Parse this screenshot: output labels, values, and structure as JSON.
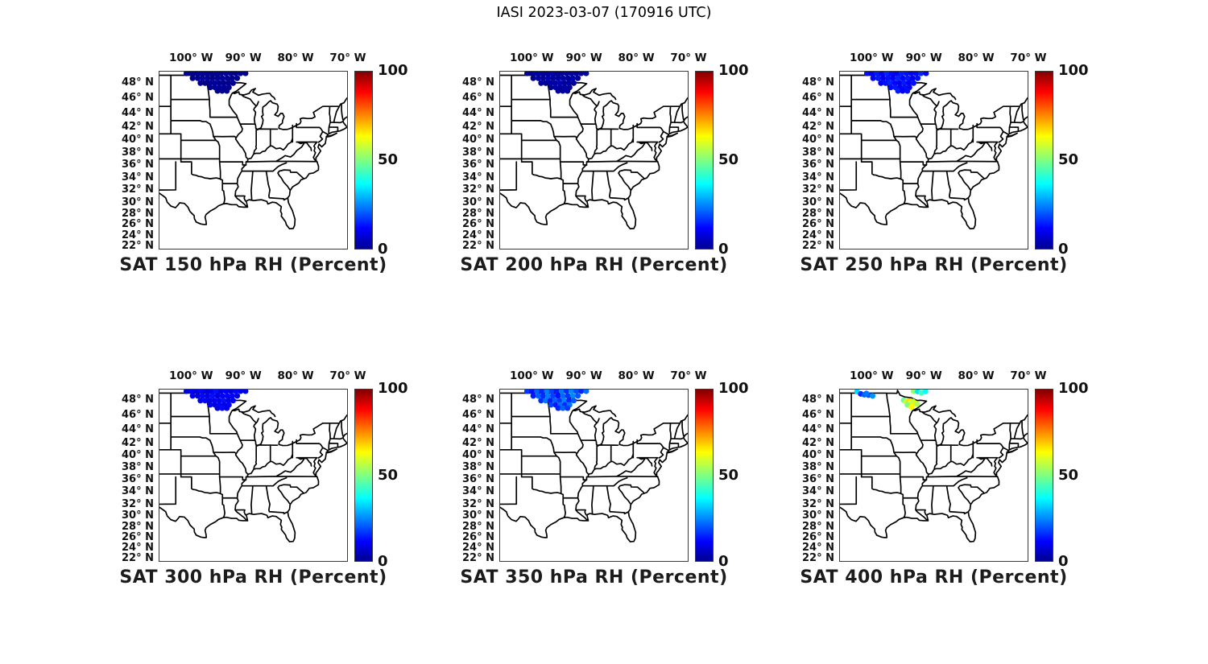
{
  "axes": {
    "lon_labels": [
      "100° W",
      "90° W",
      "80° W",
      "70° W"
    ],
    "lat_labels": [
      "48° N",
      "46° N",
      "44° N",
      "42° N",
      "40° N",
      "38° N",
      "36° N",
      "34° N",
      "32° N",
      "30° N",
      "28° N",
      "26° N",
      "24° N",
      "22° N"
    ]
  },
  "colorbar": {
    "tick_labels": [
      "100",
      "50",
      "0"
    ]
  },
  "colors": {
    "map_line": "#000000",
    "frame": "#3a3a3a",
    "text": "#111111",
    "jet_stops": [
      [
        0,
        "#000090"
      ],
      [
        0.115,
        "#0000FF"
      ],
      [
        0.365,
        "#00FFFF"
      ],
      [
        0.5,
        "#80FF80"
      ],
      [
        0.635,
        "#FFFF00"
      ],
      [
        0.885,
        "#FF0000"
      ],
      [
        1,
        "#800000"
      ]
    ]
  },
  "chart_data": {
    "type": "scatter",
    "title": "IASI 2023-03-07 (170916 UTC)",
    "map_extent": {
      "lon_min": -106.2,
      "lon_max": -70.0,
      "lat_min": 21.5,
      "lat_max": 49.45
    },
    "lon_ticks_deg_w": [
      100,
      90,
      80,
      70
    ],
    "lat_ticks_deg_n": [
      48,
      46,
      44,
      42,
      40,
      38,
      36,
      34,
      32,
      30,
      28,
      26,
      24,
      22
    ],
    "colorbar": {
      "min": 0,
      "max": 100,
      "ticks": [
        0,
        50,
        100
      ],
      "colormap": "jet",
      "units": "Percent"
    },
    "swath_points_lonlat": [
      [
        -101.0,
        49.25
      ],
      [
        -100.05,
        49.25
      ],
      [
        -99.1,
        49.25
      ],
      [
        -98.15,
        49.25
      ],
      [
        -97.2,
        49.25
      ],
      [
        -96.25,
        49.25
      ],
      [
        -95.3,
        49.25
      ],
      [
        -94.35,
        49.25
      ],
      [
        -93.4,
        49.25
      ],
      [
        -92.45,
        49.25
      ],
      [
        -91.5,
        49.25
      ],
      [
        -90.55,
        49.25
      ],
      [
        -89.6,
        49.25
      ],
      [
        -99.8,
        48.65
      ],
      [
        -98.84,
        48.65
      ],
      [
        -97.89,
        48.65
      ],
      [
        -96.93,
        48.65
      ],
      [
        -95.98,
        48.65
      ],
      [
        -95.02,
        48.65
      ],
      [
        -94.07,
        48.65
      ],
      [
        -93.11,
        48.65
      ],
      [
        -92.16,
        48.65
      ],
      [
        -91.2,
        48.65
      ],
      [
        -98.3,
        48.05
      ],
      [
        -97.4,
        48.05
      ],
      [
        -96.5,
        48.05
      ],
      [
        -95.6,
        48.05
      ],
      [
        -94.7,
        48.05
      ],
      [
        -93.8,
        48.05
      ],
      [
        -92.9,
        48.05
      ],
      [
        -92.0,
        48.05
      ],
      [
        -96.4,
        47.5
      ],
      [
        -95.5,
        47.5
      ],
      [
        -94.6,
        47.5
      ],
      [
        -93.7,
        47.5
      ],
      [
        -92.8,
        47.5
      ],
      [
        -95.0,
        47.05
      ],
      [
        -94.1,
        47.05
      ],
      [
        -93.2,
        47.05
      ]
    ],
    "panels": [
      {
        "title": "SAT 150 hPa RH (Percent)",
        "pressure_hPa": 150,
        "rh_percent": [
          2,
          1,
          2,
          3,
          1,
          2,
          2,
          1,
          3,
          2,
          1,
          2,
          2,
          1,
          2,
          3,
          2,
          1,
          2,
          3,
          2,
          1,
          2,
          2,
          1,
          2,
          3,
          2,
          1,
          2,
          2,
          1,
          2,
          3,
          2,
          1,
          2,
          1,
          2
        ]
      },
      {
        "title": "SAT 200 hPa RH (Percent)",
        "pressure_hPa": 200,
        "rh_percent": [
          3,
          2,
          4,
          3,
          2,
          5,
          3,
          2,
          4,
          3,
          2,
          4,
          3,
          2,
          4,
          3,
          5,
          2,
          3,
          4,
          2,
          5,
          3,
          3,
          2,
          4,
          3,
          5,
          2,
          4,
          3,
          2,
          4,
          3,
          5,
          2,
          3,
          2,
          4
        ]
      },
      {
        "title": "SAT 250 hPa RH (Percent)",
        "pressure_hPa": 250,
        "rh_percent": [
          14,
          11,
          15,
          12,
          16,
          13,
          11,
          15,
          14,
          12,
          13,
          16,
          12,
          13,
          15,
          11,
          14,
          12,
          16,
          13,
          15,
          11,
          14,
          12,
          14,
          16,
          13,
          11,
          15,
          12,
          14,
          13,
          15,
          11,
          14,
          12,
          15,
          12,
          14
        ]
      },
      {
        "title": "SAT 300 hPa RH (Percent)",
        "pressure_hPa": 300,
        "rh_percent": [
          9,
          12,
          10,
          13,
          9,
          11,
          14,
          10,
          12,
          9,
          13,
          11,
          10,
          11,
          9,
          13,
          10,
          14,
          9,
          12,
          11,
          13,
          10,
          10,
          13,
          9,
          12,
          11,
          14,
          10,
          12,
          11,
          9,
          13,
          10,
          12,
          10,
          13,
          11
        ]
      },
      {
        "title": "SAT 350 hPa RH (Percent)",
        "pressure_hPa": 350,
        "rh_percent": [
          18,
          14,
          22,
          16,
          25,
          19,
          15,
          24,
          17,
          26,
          20,
          16,
          23,
          15,
          22,
          17,
          25,
          19,
          14,
          23,
          18,
          26,
          21,
          17,
          24,
          15,
          22,
          18,
          25,
          16,
          21,
          19,
          15,
          23,
          17,
          24,
          16,
          22,
          18
        ]
      },
      {
        "title": "SAT 400 hPa RH (Percent)",
        "pressure_hPa": 400,
        "points_lon_lat_rh": [
          [
            -102.9,
            49.2,
            34
          ],
          [
            -102.2,
            48.9,
            16
          ],
          [
            -101.5,
            48.8,
            22
          ],
          [
            -100.7,
            48.75,
            20
          ],
          [
            -99.9,
            48.65,
            27
          ],
          [
            -101.1,
            48.95,
            24
          ],
          [
            -92.0,
            49.25,
            52
          ],
          [
            -91.2,
            49.2,
            35
          ],
          [
            -90.5,
            49.05,
            44
          ],
          [
            -89.7,
            49.2,
            38
          ],
          [
            -93.9,
            48.1,
            48
          ],
          [
            -93.4,
            47.9,
            58
          ],
          [
            -92.9,
            48.0,
            66
          ],
          [
            -92.5,
            47.8,
            62
          ],
          [
            -92.1,
            47.95,
            56
          ],
          [
            -91.6,
            47.7,
            64
          ],
          [
            -93.2,
            47.5,
            50
          ],
          [
            -92.4,
            47.2,
            63
          ],
          [
            -91.3,
            47.6,
            54
          ]
        ]
      }
    ]
  }
}
